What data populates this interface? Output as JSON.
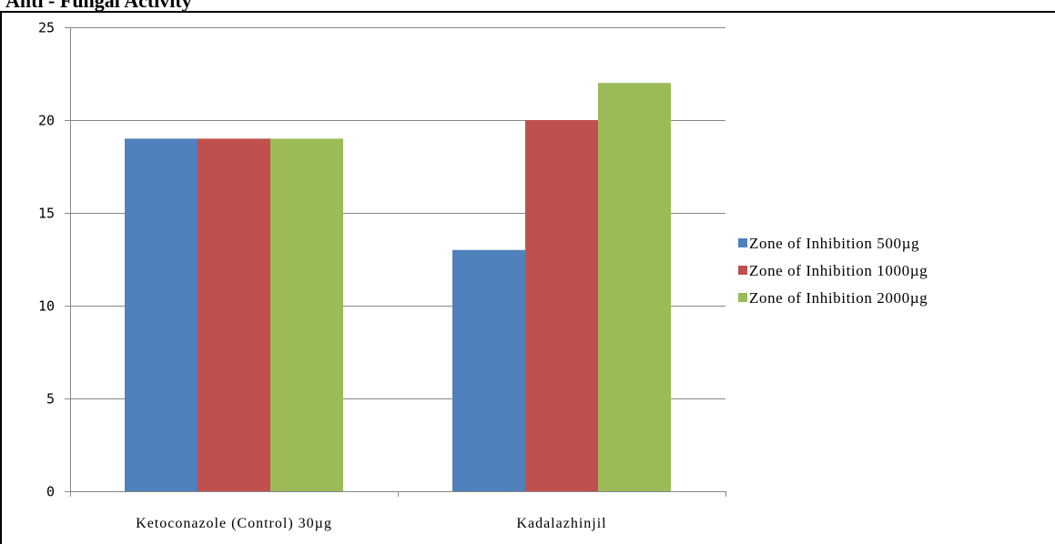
{
  "page": {
    "heading": "Anti - Fungal Activity"
  },
  "chart_data": {
    "type": "bar",
    "title": "",
    "xlabel": "",
    "ylabel": "",
    "categories": [
      "Ketoconazole (Control) 30µg",
      "Kadalazhinjil"
    ],
    "series": [
      {
        "name": "Zone of Inhibition 500µg",
        "color": "#4f81bd",
        "values": [
          19,
          13
        ]
      },
      {
        "name": "Zone of Inhibition 1000µg",
        "color": "#c0504d",
        "values": [
          19,
          20
        ]
      },
      {
        "name": "Zone of Inhibition 2000µg",
        "color": "#9bbb59",
        "values": [
          19,
          22
        ]
      }
    ],
    "ylim": [
      0,
      25
    ],
    "yticks": [
      0,
      5,
      10,
      15,
      20,
      25
    ],
    "grid": true,
    "legend_position": "right"
  }
}
